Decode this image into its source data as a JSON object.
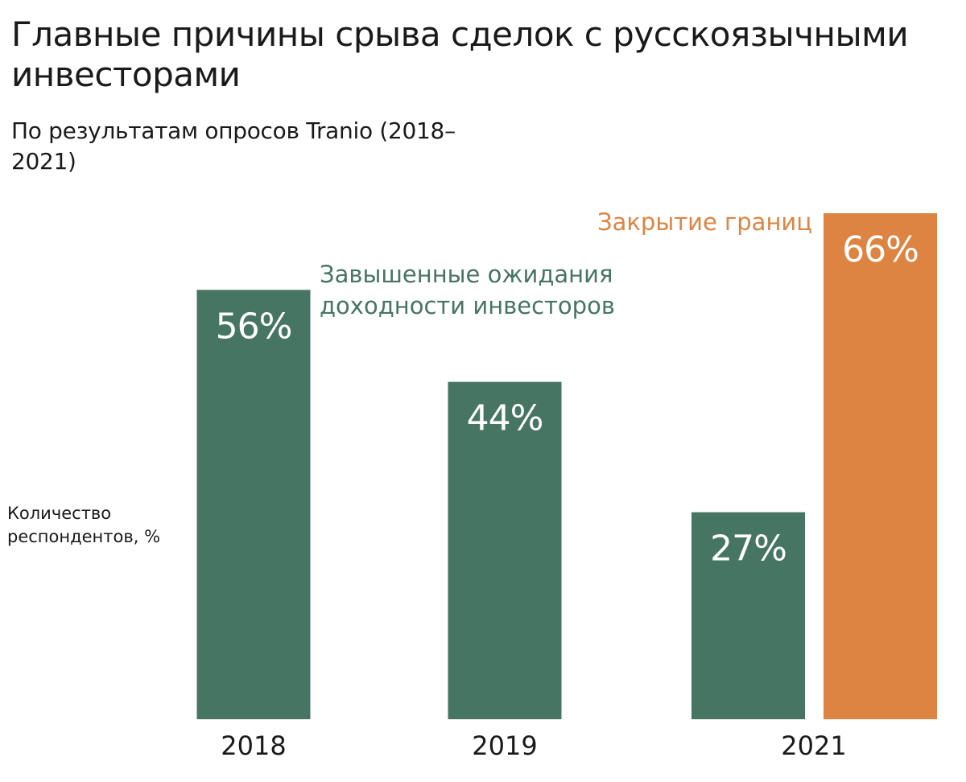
{
  "colors": {
    "green": "#477564",
    "orange": "#de8443",
    "text": "#1a1a1a"
  },
  "chart_data": {
    "type": "bar",
    "title": "Главные причины срыва сделок с русскоязычными инвесторами",
    "subtitle": "По результатам опросов Tranio (2018–2021)",
    "ylabel": "Количество респондентов, %",
    "xlabel": "",
    "ylim": [
      0,
      66
    ],
    "grid": false,
    "categories": [
      "2018",
      "2019",
      "2021"
    ],
    "series": [
      {
        "name": "Завышенные ожидания доходности инвесторов",
        "color": "#477564",
        "values": [
          56,
          44,
          27
        ]
      },
      {
        "name": "Закрытие границ",
        "color": "#de8443",
        "values": [
          null,
          null,
          66
        ]
      }
    ],
    "value_suffix": "%"
  }
}
